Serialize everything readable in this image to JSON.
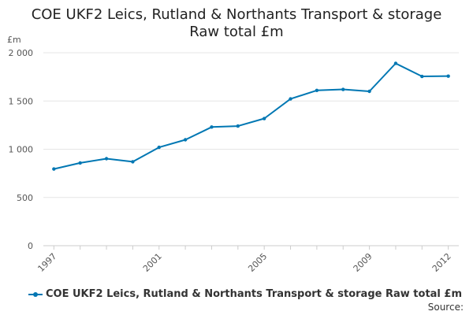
{
  "chart_data": {
    "type": "line",
    "title_line1": "COE UKF2 Leics, Rutland & Northants Transport & storage",
    "title_line2": "Raw total £m",
    "y_unit": "£m",
    "x": [
      1997,
      1998,
      1999,
      2000,
      2001,
      2002,
      2003,
      2004,
      2005,
      2006,
      2007,
      2008,
      2009,
      2010,
      2011,
      2012
    ],
    "x_tick_labels": [
      "1997",
      "2001",
      "2005",
      "2009",
      "2012"
    ],
    "x_tick_values": [
      1997,
      2001,
      2005,
      2009,
      2012
    ],
    "y_tick_labels": [
      "0",
      "500",
      "1 000",
      "1 500",
      "2 000"
    ],
    "y_tick_values": [
      0,
      500,
      1000,
      1500,
      2000
    ],
    "ylim": [
      0,
      2000
    ],
    "grid": true,
    "legend_position": "bottom-left",
    "series": [
      {
        "name": "COE UKF2 Leics, Rutland & Northants Transport & storage Raw total £m",
        "color": "#0077b3",
        "values": [
          795,
          858,
          902,
          870,
          1020,
          1098,
          1230,
          1240,
          1318,
          1522,
          1610,
          1620,
          1600,
          1890,
          1755,
          1758
        ]
      }
    ]
  },
  "footer": {
    "source_label": "Source:"
  }
}
